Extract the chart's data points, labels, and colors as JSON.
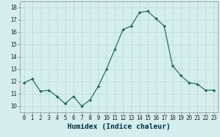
{
  "x": [
    0,
    1,
    2,
    3,
    4,
    5,
    6,
    7,
    8,
    9,
    10,
    11,
    12,
    13,
    14,
    15,
    16,
    17,
    18,
    19,
    20,
    21,
    22,
    23
  ],
  "y": [
    11.9,
    12.2,
    11.2,
    11.3,
    10.8,
    10.2,
    10.8,
    10.0,
    10.5,
    11.6,
    13.0,
    14.6,
    16.2,
    16.5,
    17.6,
    17.7,
    17.1,
    16.5,
    13.3,
    12.5,
    11.9,
    11.8,
    11.3,
    11.3
  ],
  "line_color": "#1b6b5a",
  "marker_color": "#1b6b5a",
  "bg_color": "#d4eeed",
  "grid_color": "#b8d8d5",
  "xlabel": "Humidex (Indice chaleur)",
  "ylim": [
    9.5,
    18.5
  ],
  "yticks": [
    10,
    11,
    12,
    13,
    14,
    15,
    16,
    17,
    18
  ],
  "xticks": [
    0,
    1,
    2,
    3,
    4,
    5,
    6,
    7,
    8,
    9,
    10,
    11,
    12,
    13,
    14,
    15,
    16,
    17,
    18,
    19,
    20,
    21,
    22,
    23
  ],
  "tick_label_fontsize": 5.5,
  "xlabel_fontsize": 7.5
}
